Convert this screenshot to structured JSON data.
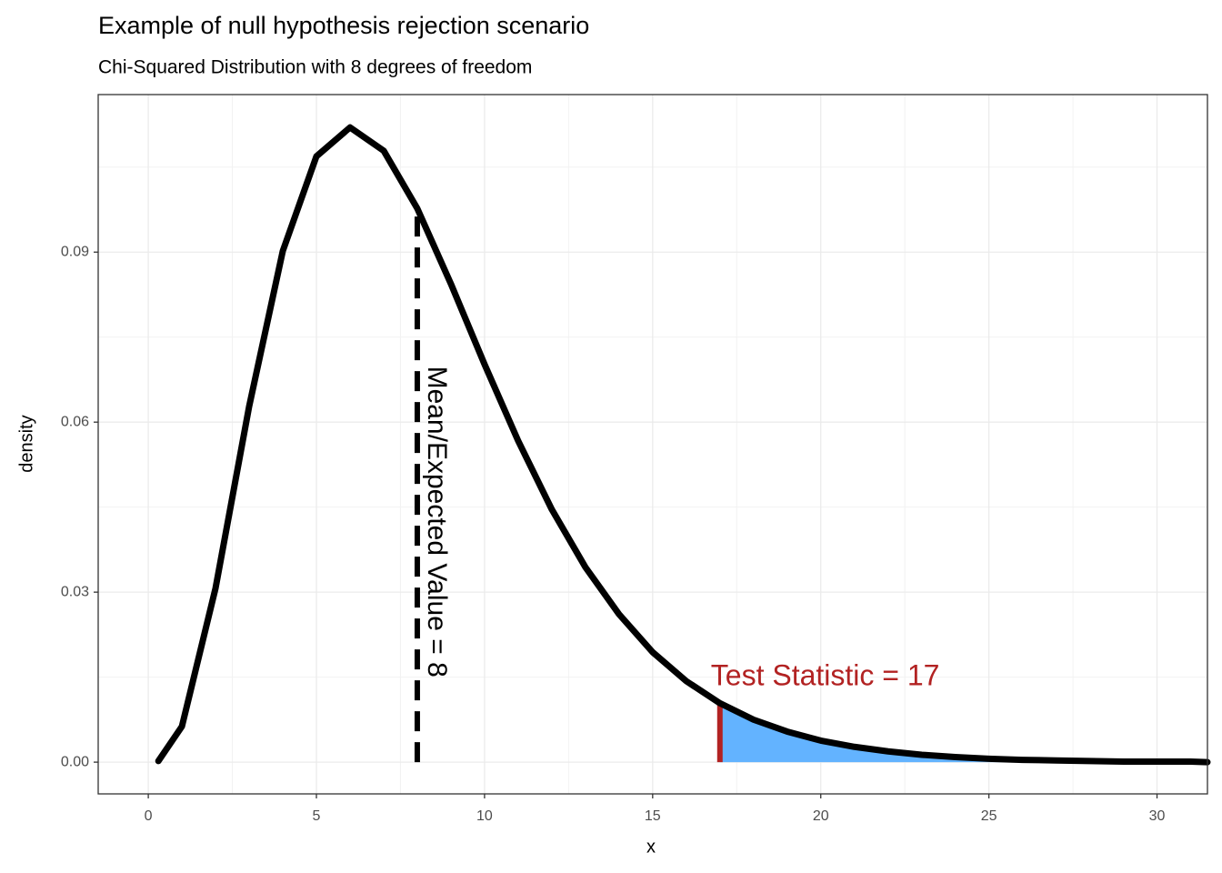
{
  "chart_data": {
    "type": "density",
    "title": "Example of null hypothesis rejection scenario",
    "subtitle": "Chi-Squared Distribution with 8 degrees of freedom",
    "x_label": "x",
    "y_label": "density",
    "x": [
      0.3,
      1,
      2,
      3,
      4,
      5,
      6,
      7,
      8,
      9,
      10,
      11,
      12,
      13,
      14,
      15,
      16,
      17,
      18,
      19,
      20,
      21,
      22,
      23,
      24,
      25,
      26,
      27,
      28,
      29,
      30,
      31,
      31.5
    ],
    "values": [
      0.0002,
      0.0063,
      0.0307,
      0.0628,
      0.0902,
      0.1069,
      0.112,
      0.1079,
      0.0977,
      0.0844,
      0.0702,
      0.0567,
      0.0446,
      0.0344,
      0.0261,
      0.0194,
      0.0143,
      0.0104,
      0.0075,
      0.0054,
      0.0038,
      0.0027,
      0.0019,
      0.0013,
      0.0009,
      0.0006,
      0.0004,
      0.0003,
      0.0002,
      0.0001,
      0.0001,
      0.0001,
      0
    ],
    "color": "#000000",
    "shade_from": 17,
    "shade_color": "#63b3ff",
    "annotations": [
      {
        "x": 8,
        "text": "Mean/Expected Value = 8",
        "color": "#000000",
        "linestyle": "dashed"
      },
      {
        "x": 17,
        "text": "Test Statistic =  17",
        "color": "#b22222",
        "linestyle": "solid"
      }
    ],
    "xlim": [
      -1.49,
      31.5
    ],
    "ylim": [
      -0.0056,
      0.1178
    ],
    "xticks": [
      0,
      5,
      10,
      15,
      20,
      25,
      30
    ],
    "yticks": [
      {
        "value": 0,
        "label": "0.00"
      },
      0.03,
      0.06,
      0.09
    ],
    "grid": true
  }
}
